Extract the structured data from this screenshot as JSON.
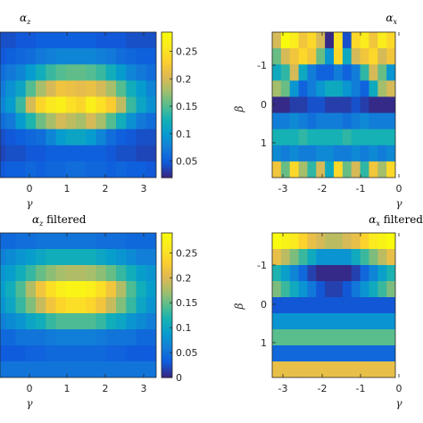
{
  "chart_data": [
    {
      "type": "heatmap",
      "title": "αz",
      "title_symbol": "α",
      "title_subscript": "z",
      "title_suffix": "",
      "xlabel": "γ",
      "ylabel": "",
      "xlim": [
        -0.8,
        3.3
      ],
      "x_ticks": [
        "0",
        "1",
        "2",
        "3"
      ],
      "y_ticks": [],
      "colorbar": {
        "ticks": [
          "0.05",
          "0.1",
          "0.15",
          "0.2",
          "0.25"
        ],
        "clim": [
          0.02,
          0.285
        ]
      },
      "values": [
        [
          0.04,
          0.04,
          0.045,
          0.045,
          0.05,
          0.05,
          0.05,
          0.05,
          0.05,
          0.05,
          0.045,
          0.045,
          0.045,
          0.04,
          0.04,
          0.04
        ],
        [
          0.045,
          0.05,
          0.055,
          0.06,
          0.07,
          0.075,
          0.08,
          0.08,
          0.08,
          0.08,
          0.075,
          0.07,
          0.06,
          0.055,
          0.05,
          0.05
        ],
        [
          0.06,
          0.07,
          0.08,
          0.1,
          0.12,
          0.14,
          0.15,
          0.155,
          0.155,
          0.15,
          0.14,
          0.12,
          0.1,
          0.08,
          0.07,
          0.06
        ],
        [
          0.07,
          0.09,
          0.11,
          0.15,
          0.18,
          0.2,
          0.22,
          0.215,
          0.21,
          0.215,
          0.2,
          0.18,
          0.15,
          0.12,
          0.1,
          0.08
        ],
        [
          0.08,
          0.1,
          0.14,
          0.2,
          0.24,
          0.26,
          0.27,
          0.25,
          0.24,
          0.27,
          0.25,
          0.23,
          0.19,
          0.14,
          0.11,
          0.09
        ],
        [
          0.06,
          0.07,
          0.1,
          0.13,
          0.16,
          0.18,
          0.2,
          0.19,
          0.18,
          0.2,
          0.18,
          0.15,
          0.12,
          0.09,
          0.07,
          0.06
        ],
        [
          0.04,
          0.045,
          0.05,
          0.055,
          0.06,
          0.08,
          0.1,
          0.11,
          0.11,
          0.1,
          0.08,
          0.06,
          0.05,
          0.045,
          0.04,
          0.04
        ],
        [
          0.035,
          0.04,
          0.04,
          0.045,
          0.045,
          0.05,
          0.05,
          0.05,
          0.05,
          0.05,
          0.05,
          0.045,
          0.04,
          0.04,
          0.035,
          0.035
        ],
        [
          0.045,
          0.05,
          0.05,
          0.055,
          0.05,
          0.055,
          0.055,
          0.06,
          0.06,
          0.055,
          0.055,
          0.05,
          0.055,
          0.05,
          0.05,
          0.045
        ]
      ]
    },
    {
      "type": "heatmap",
      "title": "αx",
      "title_symbol": "α",
      "title_subscript": "x",
      "title_suffix": "",
      "xlabel": "γ",
      "ylabel": "β",
      "xlim": [
        -3.3,
        -0.2
      ],
      "x_ticks": [
        "-3",
        "-2",
        "-1",
        "0"
      ],
      "y_ticks": [
        "-1",
        "0",
        "1"
      ],
      "values": [
        [
          0.2,
          0.28,
          0.26,
          0.22,
          0.24,
          0.2,
          0.03,
          0.25,
          0.05,
          0.24,
          0.26,
          0.22,
          0.26,
          0.24
        ],
        [
          0.16,
          0.2,
          0.22,
          0.24,
          0.22,
          0.16,
          0.1,
          0.24,
          0.12,
          0.2,
          0.22,
          0.24,
          0.2,
          0.22
        ],
        [
          0.12,
          0.14,
          0.2,
          0.12,
          0.08,
          0.06,
          0.06,
          0.08,
          0.06,
          0.08,
          0.14,
          0.2,
          0.16,
          0.1
        ],
        [
          0.18,
          0.16,
          0.1,
          0.06,
          0.08,
          0.1,
          0.12,
          0.12,
          0.1,
          0.08,
          0.06,
          0.12,
          0.18,
          0.2
        ],
        [
          0.03,
          0.03,
          0.04,
          0.04,
          0.05,
          0.05,
          0.04,
          0.04,
          0.04,
          0.05,
          0.04,
          0.03,
          0.03,
          0.03
        ],
        [
          0.08,
          0.08,
          0.09,
          0.08,
          0.07,
          0.08,
          0.08,
          0.08,
          0.07,
          0.08,
          0.09,
          0.08,
          0.08,
          0.08
        ],
        [
          0.13,
          0.13,
          0.13,
          0.14,
          0.13,
          0.13,
          0.13,
          0.13,
          0.14,
          0.13,
          0.13,
          0.13,
          0.13,
          0.13
        ],
        [
          0.09,
          0.08,
          0.09,
          0.08,
          0.08,
          0.09,
          0.09,
          0.08,
          0.08,
          0.09,
          0.08,
          0.09,
          0.08,
          0.09
        ],
        [
          0.22,
          0.16,
          0.24,
          0.18,
          0.14,
          0.2,
          0.12,
          0.24,
          0.16,
          0.2,
          0.14,
          0.22,
          0.18,
          0.24
        ]
      ]
    },
    {
      "type": "heatmap",
      "title": "αz filtered",
      "title_symbol": "α",
      "title_subscript": "z",
      "title_suffix": " filtered",
      "xlabel": "γ",
      "ylabel": "",
      "xlim": [
        -0.8,
        3.3
      ],
      "x_ticks": [
        "0",
        "1",
        "2",
        "3"
      ],
      "y_ticks": [],
      "colorbar": {
        "ticks": [
          "0",
          "0.05",
          "0.1",
          "0.15",
          "0.2",
          "0.25"
        ],
        "clim": [
          0.0,
          0.29
        ]
      },
      "values": [
        [
          0.04,
          0.04,
          0.045,
          0.045,
          0.05,
          0.05,
          0.05,
          0.05,
          0.05,
          0.05,
          0.045,
          0.045,
          0.045,
          0.04,
          0.04,
          0.04
        ],
        [
          0.06,
          0.07,
          0.08,
          0.09,
          0.1,
          0.11,
          0.11,
          0.11,
          0.11,
          0.11,
          0.1,
          0.09,
          0.08,
          0.07,
          0.06,
          0.06
        ],
        [
          0.08,
          0.09,
          0.11,
          0.13,
          0.15,
          0.165,
          0.175,
          0.18,
          0.18,
          0.175,
          0.165,
          0.15,
          0.13,
          0.11,
          0.09,
          0.08
        ],
        [
          0.09,
          0.11,
          0.14,
          0.18,
          0.22,
          0.25,
          0.27,
          0.28,
          0.28,
          0.27,
          0.25,
          0.22,
          0.18,
          0.14,
          0.11,
          0.09
        ],
        [
          0.08,
          0.1,
          0.13,
          0.16,
          0.19,
          0.22,
          0.24,
          0.25,
          0.25,
          0.24,
          0.22,
          0.19,
          0.16,
          0.13,
          0.1,
          0.08
        ],
        [
          0.06,
          0.07,
          0.08,
          0.1,
          0.11,
          0.13,
          0.14,
          0.14,
          0.14,
          0.14,
          0.13,
          0.11,
          0.1,
          0.08,
          0.07,
          0.06
        ],
        [
          0.04,
          0.04,
          0.05,
          0.05,
          0.05,
          0.055,
          0.06,
          0.06,
          0.06,
          0.06,
          0.055,
          0.05,
          0.05,
          0.05,
          0.04,
          0.04
        ],
        [
          0.03,
          0.03,
          0.03,
          0.035,
          0.035,
          0.04,
          0.04,
          0.04,
          0.04,
          0.04,
          0.04,
          0.035,
          0.035,
          0.03,
          0.03,
          0.03
        ],
        [
          0.05,
          0.05,
          0.05,
          0.05,
          0.05,
          0.05,
          0.05,
          0.05,
          0.05,
          0.05,
          0.05,
          0.05,
          0.05,
          0.05,
          0.05,
          0.05
        ]
      ]
    },
    {
      "type": "heatmap",
      "title": "αx filtered",
      "title_symbol": "α",
      "title_subscript": "x",
      "title_suffix": " filtered",
      "xlabel": "γ",
      "ylabel": "β",
      "xlim": [
        -3.3,
        -0.2
      ],
      "x_ticks": [
        "-3",
        "-2",
        "-1",
        "0"
      ],
      "y_ticks": [
        "-1",
        "0",
        "1"
      ],
      "values": [
        [
          0.26,
          0.25,
          0.24,
          0.22,
          0.2,
          0.19,
          0.18,
          0.18,
          0.19,
          0.2,
          0.22,
          0.24,
          0.25,
          0.26
        ],
        [
          0.2,
          0.18,
          0.16,
          0.14,
          0.12,
          0.1,
          0.1,
          0.1,
          0.1,
          0.12,
          0.14,
          0.16,
          0.18,
          0.2
        ],
        [
          0.13,
          0.11,
          0.09,
          0.07,
          0.05,
          0.04,
          0.04,
          0.04,
          0.04,
          0.05,
          0.07,
          0.09,
          0.11,
          0.13
        ],
        [
          0.16,
          0.14,
          0.12,
          0.1,
          0.08,
          0.06,
          0.05,
          0.05,
          0.06,
          0.08,
          0.1,
          0.12,
          0.14,
          0.16
        ],
        [
          0.06,
          0.06,
          0.06,
          0.06,
          0.06,
          0.06,
          0.06,
          0.06,
          0.06,
          0.06,
          0.06,
          0.06,
          0.06,
          0.06
        ],
        [
          0.1,
          0.1,
          0.1,
          0.1,
          0.1,
          0.1,
          0.1,
          0.1,
          0.1,
          0.1,
          0.1,
          0.1,
          0.1,
          0.1
        ],
        [
          0.15,
          0.15,
          0.15,
          0.15,
          0.15,
          0.15,
          0.15,
          0.15,
          0.15,
          0.15,
          0.15,
          0.15,
          0.15,
          0.15
        ],
        [
          0.07,
          0.07,
          0.07,
          0.07,
          0.07,
          0.07,
          0.07,
          0.07,
          0.07,
          0.07,
          0.07,
          0.07,
          0.07,
          0.07
        ],
        [
          0.2,
          0.2,
          0.2,
          0.2,
          0.2,
          0.2,
          0.2,
          0.2,
          0.2,
          0.2,
          0.2,
          0.2,
          0.2,
          0.2
        ]
      ]
    }
  ]
}
